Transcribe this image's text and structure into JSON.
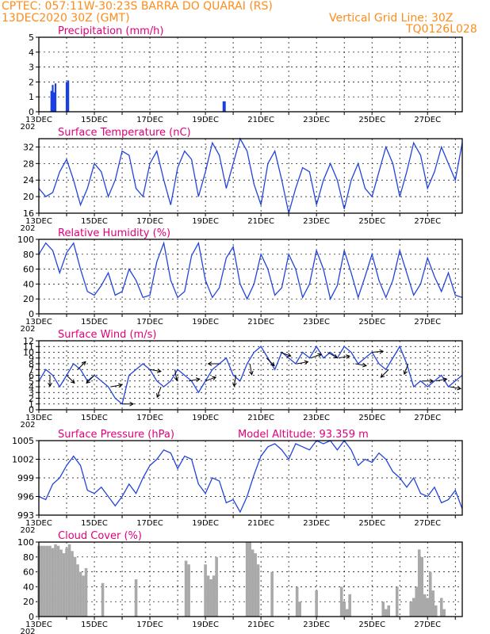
{
  "header": {
    "line1": "CPTEC:   057:11W-30:23S  BARRA DO QUARAI (RS)",
    "date": "13DEC2020 30Z (GMT)",
    "grid_note": "Vertical Grid Line: 30Z",
    "code": "TQ0126L028"
  },
  "colors": {
    "header": "#ff8c1a",
    "title": "#e0007a",
    "line": "#2244dd",
    "precip": "#1a3fe0",
    "cloud": "#a9a9a9"
  },
  "x_axis": {
    "labels": [
      "13DEC",
      "15DEC",
      "17DEC",
      "19DEC",
      "21DEC",
      "23DEC",
      "25DEC",
      "27DEC"
    ],
    "start": "13DEC2020 00Z",
    "end": "28DEC2020 06Z",
    "year_fragment": "202"
  },
  "chart_data": [
    {
      "type": "bar",
      "title": "Precipitation (mm/h)",
      "ylim": [
        0,
        5
      ],
      "yticks": [
        0,
        1,
        2,
        3,
        4,
        5
      ],
      "x_days": [
        0.45,
        0.5,
        0.55,
        0.6,
        1.0,
        1.06,
        6.65,
        6.7
      ],
      "values": [
        1.4,
        1.8,
        1.3,
        1.9,
        2.0,
        2.1,
        0.7,
        0.7
      ]
    },
    {
      "type": "line",
      "title": "Surface Temperature (nC)",
      "ylim": [
        16,
        34
      ],
      "yticks": [
        16,
        20,
        24,
        28,
        32
      ],
      "x_days": [
        0,
        0.25,
        0.5,
        0.75,
        1.0,
        1.25,
        1.5,
        1.75,
        2.0,
        2.25,
        2.5,
        2.75,
        3.0,
        3.25,
        3.5,
        3.75,
        4.0,
        4.25,
        4.5,
        4.75,
        5.0,
        5.25,
        5.5,
        5.75,
        6.0,
        6.25,
        6.5,
        6.75,
        7.0,
        7.25,
        7.5,
        7.75,
        8.0,
        8.25,
        8.5,
        8.75,
        9.0,
        9.25,
        9.5,
        9.75,
        10.0,
        10.25,
        10.5,
        10.75,
        11.0,
        11.25,
        11.5,
        11.75,
        12.0,
        12.25,
        12.5,
        12.75,
        13.0,
        13.25,
        13.5,
        13.75,
        14.0,
        14.25,
        14.5,
        14.75,
        15.0,
        15.25
      ],
      "values": [
        22,
        20,
        21,
        26,
        29,
        24,
        18,
        22,
        28,
        26,
        20,
        24,
        31,
        30,
        22,
        20,
        28,
        31,
        24,
        18,
        27,
        31,
        29,
        20,
        26,
        33,
        30,
        22,
        28,
        34,
        31,
        23,
        18,
        28,
        31,
        24,
        16,
        22,
        27,
        26,
        18,
        24,
        28,
        24,
        17,
        24,
        28,
        22,
        20,
        26,
        32,
        28,
        20,
        26,
        33,
        30,
        22,
        26,
        32,
        28,
        24,
        33
      ]
    },
    {
      "type": "line",
      "title": "Relative Humidity (%)",
      "ylim": [
        0,
        100
      ],
      "yticks": [
        0,
        20,
        40,
        60,
        80,
        100
      ],
      "x_days": [
        0,
        0.25,
        0.5,
        0.75,
        1.0,
        1.25,
        1.5,
        1.75,
        2.0,
        2.25,
        2.5,
        2.75,
        3.0,
        3.25,
        3.5,
        3.75,
        4.0,
        4.25,
        4.5,
        4.75,
        5.0,
        5.25,
        5.5,
        5.75,
        6.0,
        6.25,
        6.5,
        6.75,
        7.0,
        7.25,
        7.5,
        7.75,
        8.0,
        8.25,
        8.5,
        8.75,
        9.0,
        9.25,
        9.5,
        9.75,
        10.0,
        10.25,
        10.5,
        10.75,
        11.0,
        11.25,
        11.5,
        11.75,
        12.0,
        12.25,
        12.5,
        12.75,
        13.0,
        13.25,
        13.5,
        13.75,
        14.0,
        14.25,
        14.5,
        14.75,
        15.0,
        15.25
      ],
      "values": [
        80,
        95,
        85,
        55,
        82,
        95,
        60,
        30,
        25,
        38,
        55,
        25,
        30,
        60,
        45,
        22,
        25,
        70,
        95,
        45,
        22,
        30,
        78,
        95,
        45,
        22,
        35,
        75,
        90,
        40,
        20,
        40,
        80,
        60,
        25,
        35,
        80,
        60,
        22,
        40,
        85,
        60,
        20,
        38,
        85,
        55,
        22,
        50,
        80,
        45,
        22,
        45,
        85,
        55,
        25,
        40,
        75,
        50,
        30,
        55,
        25,
        22
      ]
    },
    {
      "type": "line",
      "title": "Surface Wind (m/s)",
      "ylim": [
        0,
        12
      ],
      "yticks": [
        0,
        1,
        2,
        3,
        4,
        5,
        6,
        7,
        8,
        9,
        10,
        11,
        12
      ],
      "x_days": [
        0,
        0.25,
        0.5,
        0.75,
        1.0,
        1.25,
        1.5,
        1.75,
        2.0,
        2.25,
        2.5,
        2.75,
        3.0,
        3.25,
        3.5,
        3.75,
        4.0,
        4.25,
        4.5,
        4.75,
        5.0,
        5.25,
        5.5,
        5.75,
        6.0,
        6.25,
        6.5,
        6.75,
        7.0,
        7.25,
        7.5,
        7.75,
        8.0,
        8.25,
        8.5,
        8.75,
        9.0,
        9.25,
        9.5,
        9.75,
        10.0,
        10.25,
        10.5,
        10.75,
        11.0,
        11.25,
        11.5,
        11.75,
        12.0,
        12.25,
        12.5,
        12.75,
        13.0,
        13.25,
        13.5,
        13.75,
        14.0,
        14.25,
        14.5,
        14.75,
        15.0,
        15.25
      ],
      "values": [
        5,
        7,
        6,
        4,
        6,
        8,
        7,
        5,
        6,
        5,
        4,
        2,
        1,
        6,
        7,
        8,
        7,
        5,
        4,
        5,
        7,
        6,
        5,
        3,
        5,
        7,
        8,
        9,
        6,
        5,
        8,
        10,
        11,
        9,
        7,
        10,
        9,
        8,
        10,
        9,
        11,
        9,
        10,
        9,
        11,
        10,
        8,
        9,
        10,
        8,
        7,
        9,
        11,
        8,
        4,
        5,
        4,
        5,
        6,
        4,
        5,
        6
      ],
      "wind_arrows": [
        {
          "x_day": 0.4,
          "dir_deg": 180
        },
        {
          "x_day": 1.0,
          "dir_deg": 135
        },
        {
          "x_day": 1.4,
          "dir_deg": 45
        },
        {
          "x_day": 2.0,
          "dir_deg": 225
        },
        {
          "x_day": 2.6,
          "dir_deg": 80
        },
        {
          "x_day": 3.0,
          "dir_deg": 90
        },
        {
          "x_day": 4.0,
          "dir_deg": 100
        },
        {
          "x_day": 4.4,
          "dir_deg": 200
        },
        {
          "x_day": 4.9,
          "dir_deg": 170
        },
        {
          "x_day": 5.4,
          "dir_deg": 80
        },
        {
          "x_day": 6.0,
          "dir_deg": 70
        },
        {
          "x_day": 6.5,
          "dir_deg": 270
        },
        {
          "x_day": 7.1,
          "dir_deg": 190
        },
        {
          "x_day": 7.6,
          "dir_deg": 170
        },
        {
          "x_day": 8.2,
          "dir_deg": 135
        },
        {
          "x_day": 8.7,
          "dir_deg": 110
        },
        {
          "x_day": 9.3,
          "dir_deg": 80
        },
        {
          "x_day": 9.8,
          "dir_deg": 70
        },
        {
          "x_day": 10.4,
          "dir_deg": 120
        },
        {
          "x_day": 10.8,
          "dir_deg": 80
        },
        {
          "x_day": 11.4,
          "dir_deg": 100
        },
        {
          "x_day": 12.0,
          "dir_deg": 85
        },
        {
          "x_day": 12.6,
          "dir_deg": 225
        },
        {
          "x_day": 13.3,
          "dir_deg": 200
        },
        {
          "x_day": 13.8,
          "dir_deg": 90
        },
        {
          "x_day": 14.3,
          "dir_deg": 80
        },
        {
          "x_day": 14.8,
          "dir_deg": 100
        }
      ]
    },
    {
      "type": "line",
      "title": "Surface Pressure (hPa)",
      "subtitle": "Model Altitude: 93.359 m",
      "ylim": [
        993,
        1005
      ],
      "yticks": [
        993,
        996,
        999,
        1002,
        1005
      ],
      "x_days": [
        0,
        0.25,
        0.5,
        0.75,
        1.0,
        1.25,
        1.5,
        1.75,
        2.0,
        2.25,
        2.5,
        2.75,
        3.0,
        3.25,
        3.5,
        3.75,
        4.0,
        4.25,
        4.5,
        4.75,
        5.0,
        5.25,
        5.5,
        5.75,
        6.0,
        6.25,
        6.5,
        6.75,
        7.0,
        7.25,
        7.5,
        7.75,
        8.0,
        8.25,
        8.5,
        8.75,
        9.0,
        9.25,
        9.5,
        9.75,
        10.0,
        10.25,
        10.5,
        10.75,
        11.0,
        11.25,
        11.5,
        11.75,
        12.0,
        12.25,
        12.5,
        12.75,
        13.0,
        13.25,
        13.5,
        13.75,
        14.0,
        14.25,
        14.5,
        14.75,
        15.0,
        15.25
      ],
      "values": [
        996,
        995.5,
        998,
        999,
        1001,
        1002.5,
        1001,
        997,
        996.5,
        997.5,
        996,
        994.5,
        996,
        998,
        996.5,
        999,
        1001,
        1002,
        1003.5,
        1003,
        1000.5,
        1002.5,
        1002,
        998,
        996.5,
        999,
        998.5,
        995,
        995.5,
        993.5,
        996,
        999.5,
        1002.5,
        1004,
        1004.5,
        1003.5,
        1002,
        1004.5,
        1004,
        1003.5,
        1005,
        1004.5,
        1005,
        1003.5,
        1005,
        1003.5,
        1001,
        1002,
        1001.5,
        1003,
        1002,
        1000,
        999,
        997.5,
        999,
        996.5,
        996,
        997.5,
        995,
        995.5,
        997,
        994
      ]
    },
    {
      "type": "bar",
      "title": "Cloud Cover (%)",
      "ylim": [
        0,
        100
      ],
      "yticks": [
        0,
        20,
        40,
        60,
        80,
        100
      ],
      "x_days": [
        0.0,
        0.1,
        0.2,
        0.3,
        0.4,
        0.5,
        0.6,
        0.7,
        0.8,
        0.9,
        1.0,
        1.1,
        1.2,
        1.3,
        1.4,
        1.5,
        1.6,
        1.7,
        2.3,
        3.5,
        5.3,
        5.4,
        6.0,
        6.1,
        6.2,
        6.3,
        6.4,
        7.5,
        7.6,
        7.7,
        7.8,
        7.9,
        8.4,
        9.3,
        9.4,
        10.0,
        10.9,
        11.0,
        11.1,
        11.2,
        12.4,
        12.5,
        12.6,
        12.9,
        13.4,
        13.5,
        13.6,
        13.7,
        13.8,
        13.9,
        14.0,
        14.1,
        14.2,
        14.3,
        14.5,
        14.6
      ],
      "values": [
        95,
        95,
        95,
        95,
        95,
        92,
        97,
        95,
        90,
        85,
        92,
        97,
        88,
        80,
        70,
        60,
        55,
        65,
        45,
        50,
        75,
        70,
        70,
        55,
        50,
        55,
        80,
        100,
        100,
        90,
        85,
        70,
        60,
        40,
        20,
        35,
        40,
        20,
        10,
        30,
        20,
        10,
        15,
        40,
        20,
        25,
        40,
        90,
        80,
        30,
        25,
        60,
        35,
        15,
        25,
        10
      ]
    }
  ]
}
